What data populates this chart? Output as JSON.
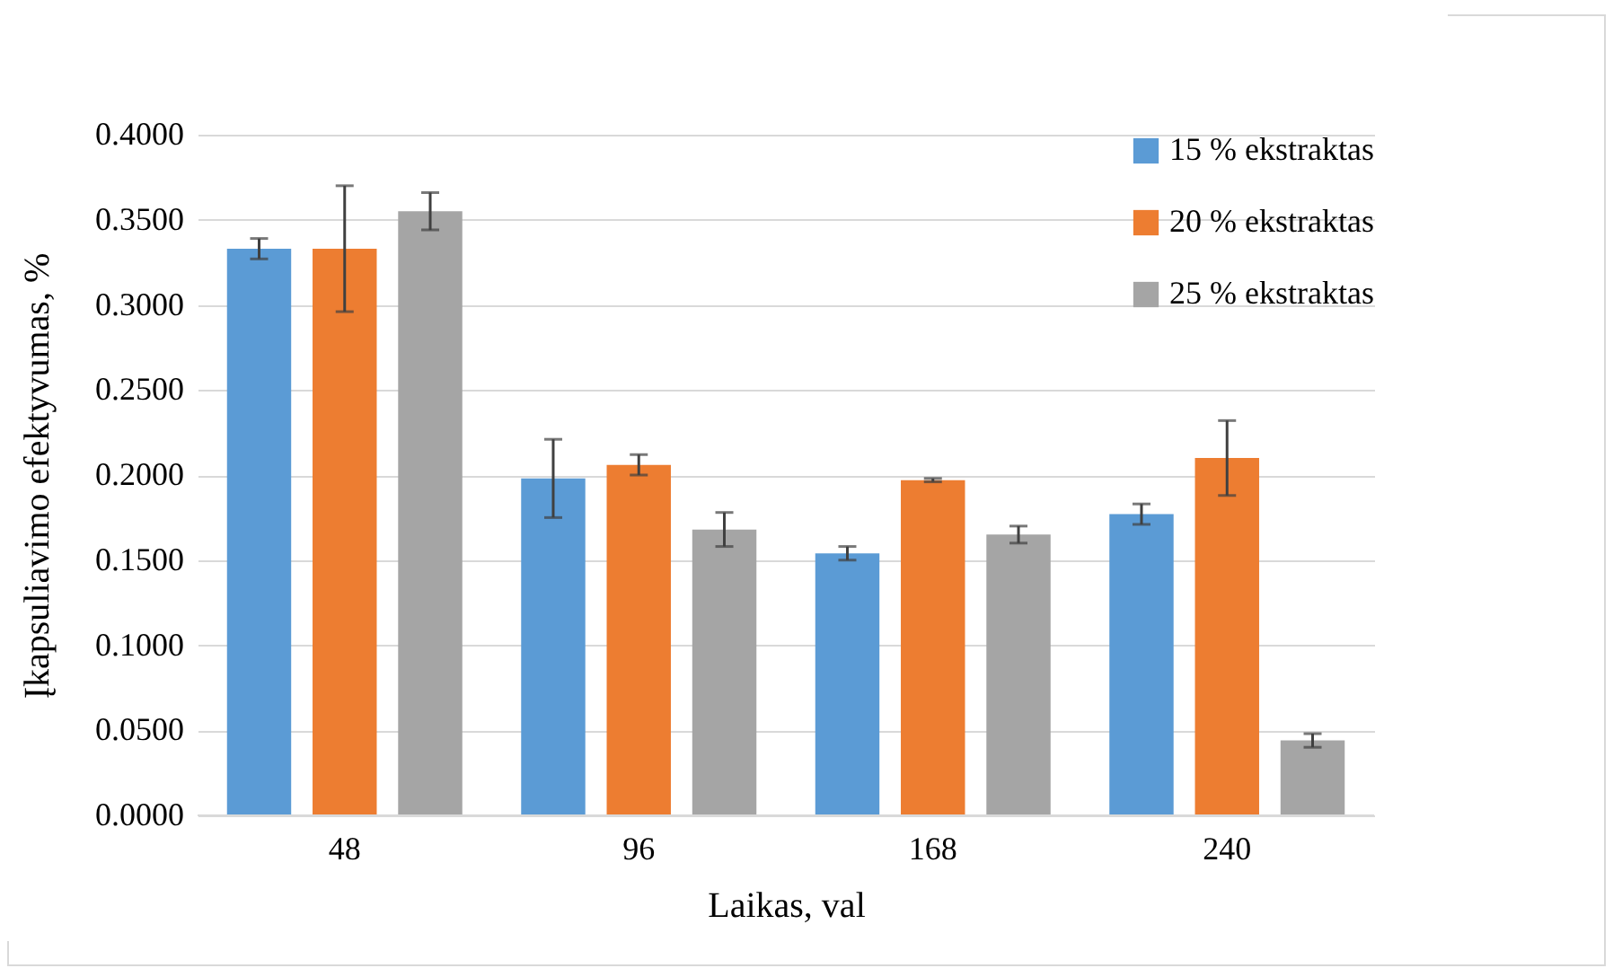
{
  "chart_data": {
    "type": "bar",
    "xlabel": "Laikas, val",
    "ylabel": "Įkapsuliavimo efektyvumas, %",
    "categories": [
      "48",
      "96",
      "168",
      "240"
    ],
    "series": [
      {
        "name": "15 % ekstraktas",
        "color": "#5b9bd5",
        "values": [
          0.333,
          0.198,
          0.154,
          0.177
        ],
        "errors": [
          0.006,
          0.023,
          0.004,
          0.006
        ]
      },
      {
        "name": "20 % ekstraktas",
        "color": "#ed7d31",
        "values": [
          0.333,
          0.206,
          0.197,
          0.21
        ],
        "errors": [
          0.037,
          0.006,
          0.001,
          0.022
        ]
      },
      {
        "name": "25 % ekstraktas",
        "color": "#a5a5a5",
        "values": [
          0.355,
          0.168,
          0.165,
          0.044
        ],
        "errors": [
          0.011,
          0.01,
          0.005,
          0.004
        ]
      }
    ],
    "ylim": [
      0,
      0.4
    ],
    "yticks": [
      {
        "value": 0,
        "label": "0.0000"
      },
      {
        "value": 0.05,
        "label": "0.0500"
      },
      {
        "value": 0.1,
        "label": "0.1000"
      },
      {
        "value": 0.15,
        "label": "0.1500"
      },
      {
        "value": 0.2,
        "label": "0.2000"
      },
      {
        "value": 0.25,
        "label": "0.2500"
      },
      {
        "value": 0.3,
        "label": "0.3000"
      },
      {
        "value": 0.35,
        "label": "0.3500"
      },
      {
        "value": 0.4,
        "label": "0.4000"
      }
    ],
    "grid": "y",
    "legend": "top right"
  }
}
